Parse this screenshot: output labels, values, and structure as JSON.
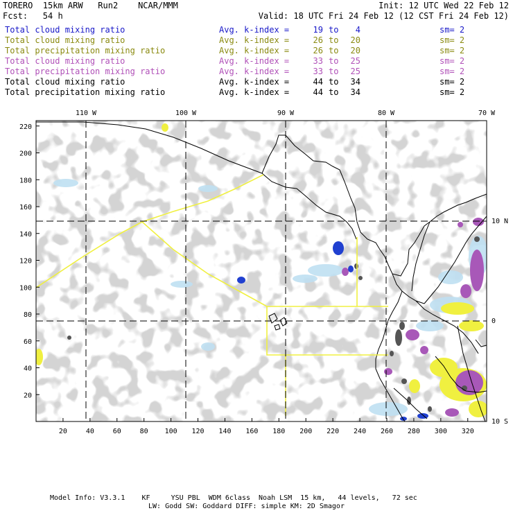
{
  "header": {
    "title_left": "TORERO  15km ARW   Run2    NCAR/MMM",
    "fcst": "Fcst:   54 h",
    "init": "Init: 12 UTC Wed 22 Feb 12",
    "valid": "Valid: 18 UTC Fri 24 Feb 12 (12 CST Fri 24 Feb 12)"
  },
  "legend": [
    {
      "field": "Total cloud mixing ratio",
      "index_label": "Avg. k-index =",
      "k_from": "19",
      "to": "to",
      "k_to": "4",
      "sm": "sm= 2",
      "color": "#1818c8"
    },
    {
      "field": "Total cloud mixing ratio",
      "index_label": "Avg. k-index =",
      "k_from": "26",
      "to": "to",
      "k_to": "20",
      "sm": "sm= 2",
      "color": "#8a8a10"
    },
    {
      "field": "Total precipitation mixing ratio",
      "index_label": "Avg. k-index =",
      "k_from": "26",
      "to": "to",
      "k_to": "20",
      "sm": "sm= 2",
      "color": "#8a8a10"
    },
    {
      "field": "Total cloud mixing ratio",
      "index_label": "Avg. k-index =",
      "k_from": "33",
      "to": "to",
      "k_to": "25",
      "sm": "sm= 2",
      "color": "#b050b8"
    },
    {
      "field": "Total precipitation mixing ratio",
      "index_label": "Avg. k-index =",
      "k_from": "33",
      "to": "to",
      "k_to": "25",
      "sm": "sm= 2",
      "color": "#b050b8"
    },
    {
      "field": "Total cloud mixing ratio",
      "index_label": "Avg. k-index =",
      "k_from": "44",
      "to": "to",
      "k_to": "34",
      "sm": "sm= 2",
      "color": "#000000"
    },
    {
      "field": "Total precipitation mixing ratio",
      "index_label": "Avg. k-index =",
      "k_from": "44",
      "to": "to",
      "k_to": "34",
      "sm": "sm= 2",
      "color": "#000000"
    }
  ],
  "map": {
    "lon_labels": [
      "110 W",
      "100 W",
      "90 W",
      "80 W",
      "70 W"
    ],
    "lat_labels": [
      "10 N",
      "0",
      "10 S"
    ],
    "x_ticks": [
      "20",
      "40",
      "60",
      "80",
      "100",
      "120",
      "140",
      "160",
      "180",
      "200",
      "220",
      "240",
      "260",
      "280",
      "300",
      "320"
    ],
    "y_ticks": [
      "220",
      "200",
      "180",
      "160",
      "140",
      "120",
      "100",
      "80",
      "60",
      "40",
      "20"
    ],
    "colors": {
      "cloud_gray": "#a8a8a8",
      "dark_gray": "#555555",
      "light_blue": "#bfe0f2",
      "blue": "#2040d0",
      "purple": "#a858b8",
      "yellow": "#f0f040",
      "boundary": "#f0f040",
      "coast": "#000000"
    }
  },
  "footer": {
    "line1": "Model Info: V3.3.1    KF     YSU PBL  WDM 6class  Noah LSM  15 km,   44 levels,   72 sec",
    "line2": "LW: Godd SW: Goddard DIFF: simple KM: 2D Smagor"
  }
}
